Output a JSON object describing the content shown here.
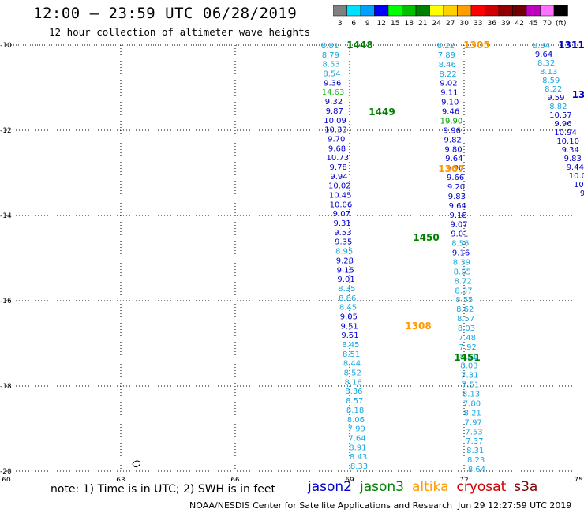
{
  "title": "12:00 – 23:59 UTC 06/28/2019",
  "subtitle": "12 hour collection of altimeter wave heights",
  "colorbar": {
    "labels": [
      "3",
      "6",
      "9",
      "12",
      "15",
      "18",
      "21",
      "24",
      "27",
      "30",
      "33",
      "36",
      "39",
      "42",
      "45",
      "70",
      "(ft)"
    ],
    "colors": [
      "#808080",
      "#00e0ff",
      "#00a0ff",
      "#0000ff",
      "#00ff00",
      "#00c000",
      "#008000",
      "#ffff00",
      "#ffd000",
      "#ffa000",
      "#ff0000",
      "#d00000",
      "#900000",
      "#700000",
      "#c000c0",
      "#ff70ff",
      "#000000"
    ]
  },
  "axes": {
    "x_ticks": [
      "60",
      "63",
      "66",
      "69",
      "72",
      "75"
    ],
    "y_ticks": [
      "-10",
      "-12",
      "-14",
      "-16",
      "-18",
      "-20"
    ]
  },
  "track_labels": [
    {
      "text": "1448",
      "color": "#008000"
    },
    {
      "text": "1449",
      "color": "#008000"
    },
    {
      "text": "1450",
      "color": "#008000"
    },
    {
      "text": "1451",
      "color": "#008000"
    },
    {
      "text": "1305",
      "color": "#ff9900"
    },
    {
      "text": "1307",
      "color": "#ff9900"
    },
    {
      "text": "1308",
      "color": "#ff9900"
    },
    {
      "text": "1311",
      "color": "#0000cc"
    },
    {
      "text": "13",
      "color": "#0000cc"
    }
  ],
  "tracks": {
    "track_a": [
      "8.81",
      "8.79",
      "8.53",
      "8.54",
      "9.36",
      "14.63",
      "9.32",
      "9.87",
      "10.09",
      "10.33",
      "9.70",
      "9.68",
      "10.73",
      "9.78",
      "9.94",
      "10.02",
      "10.45",
      "10.06",
      "9.07",
      "9.31",
      "9.53",
      "9.35",
      "8.95",
      "9.28",
      "9.15",
      "9.01",
      "8.35",
      "8.86",
      "8.45",
      "9.05",
      "9.51",
      "9.51",
      "8.45",
      "8.51",
      "8.44",
      "8.52",
      "8.16",
      "8.36",
      "8.57",
      "8.18",
      "8.06",
      "7.99",
      "7.64",
      "8.91",
      "8.43",
      "8.33"
    ],
    "track_b": [
      "8.22",
      "7.89",
      "8.46",
      "8.22",
      "9.02",
      "9.11",
      "9.10",
      "9.46",
      "19.90",
      "9.96",
      "9.82",
      "9.80",
      "9.64",
      "9.90",
      "9.66",
      "9.20",
      "9.83",
      "9.64",
      "9.18",
      "9.07",
      "9.01",
      "8.56",
      "9.16",
      "8.39",
      "8.65",
      "8.72",
      "8.37",
      "8.55",
      "8.62",
      "8.57",
      "8.03",
      "7.48",
      "7.92",
      "8.51",
      "8.03",
      "7.31",
      "7.51",
      "8.13",
      "7.80",
      "8.21",
      "7.97",
      "7.53",
      "7.37",
      "8.31",
      "8.23",
      "8.64"
    ],
    "track_c": [
      "8.34",
      "9.64",
      "8.32",
      "8.13",
      "8.59",
      "8.22",
      "9.59",
      "8.82",
      "10.57",
      "9.96",
      "10.94",
      "10.10",
      "9.34",
      "9.83",
      "9.44",
      "10.0",
      "10.",
      "9"
    ]
  },
  "annotations": {
    "note": "note:  1) Time is in UTC;  2) SWH is in feet",
    "credit": "NOAA/NESDIS Center for Satellite Applications and Research",
    "timestamp": "Jun 29 12:27:59 UTC 2019"
  },
  "legend": [
    {
      "text": "jason2",
      "color": "#0000cc"
    },
    {
      "text": "jason3",
      "color": "#008000"
    },
    {
      "text": "altika",
      "color": "#ff9900"
    },
    {
      "text": "cryosat",
      "color": "#cc0000"
    },
    {
      "text": "s3a",
      "color": "#800000"
    }
  ]
}
